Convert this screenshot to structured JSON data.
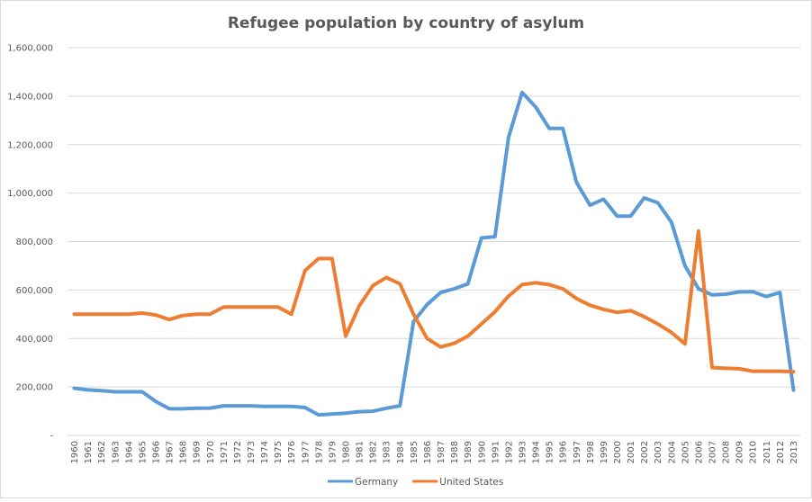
{
  "chart_data": {
    "type": "line",
    "title": "Refugee population  by country  of asylum",
    "xlabel": "",
    "ylabel": "",
    "ylim": [
      0,
      1600000
    ],
    "yticks": [
      0,
      200000,
      400000,
      600000,
      800000,
      1000000,
      1200000,
      1400000,
      1600000
    ],
    "ytick_labels": [
      "-",
      "200,000",
      "400,000",
      "600,000",
      "800,000",
      "1,000,000",
      "1,200,000",
      "1,400,000",
      "1,600,000"
    ],
    "grid": true,
    "legend_position": "bottom",
    "x": [
      1960,
      1961,
      1962,
      1963,
      1964,
      1965,
      1966,
      1967,
      1968,
      1969,
      1970,
      1971,
      1972,
      1973,
      1974,
      1975,
      1976,
      1977,
      1978,
      1979,
      1980,
      1981,
      1982,
      1983,
      1984,
      1985,
      1986,
      1987,
      1988,
      1989,
      1990,
      1991,
      1992,
      1993,
      1994,
      1995,
      1996,
      1997,
      1998,
      1999,
      2000,
      2001,
      2002,
      2003,
      2004,
      2005,
      2006,
      2007,
      2008,
      2009,
      2010,
      2011,
      2012,
      2013
    ],
    "series": [
      {
        "name": "Germany",
        "color": "#5b9bd5",
        "values": [
          195000,
          188000,
          185000,
          180000,
          180000,
          180000,
          140000,
          110000,
          110000,
          112000,
          113000,
          122000,
          122000,
          122000,
          120000,
          120000,
          120000,
          115000,
          85000,
          88000,
          92000,
          98000,
          100000,
          112000,
          122000,
          470000,
          540000,
          590000,
          605000,
          625000,
          815000,
          820000,
          1230000,
          1415000,
          1355000,
          1267000,
          1267000,
          1045000,
          950000,
          975000,
          905000,
          905000,
          980000,
          960000,
          880000,
          700000,
          605000,
          580000,
          583000,
          592000,
          593000,
          573000,
          590000,
          187000
        ]
      },
      {
        "name": "United States",
        "color": "#ed7d31",
        "values": [
          500000,
          500000,
          500000,
          500000,
          500000,
          505000,
          497000,
          478000,
          495000,
          500000,
          500000,
          530000,
          530000,
          530000,
          530000,
          530000,
          500000,
          680000,
          730000,
          730000,
          410000,
          535000,
          618000,
          652000,
          625000,
          500000,
          400000,
          365000,
          380000,
          410000,
          460000,
          510000,
          575000,
          622000,
          630000,
          622000,
          605000,
          565000,
          537000,
          520000,
          508000,
          515000,
          490000,
          460000,
          425000,
          378000,
          843000,
          280000,
          277000,
          275000,
          265000,
          265000,
          265000,
          263000
        ]
      }
    ]
  }
}
